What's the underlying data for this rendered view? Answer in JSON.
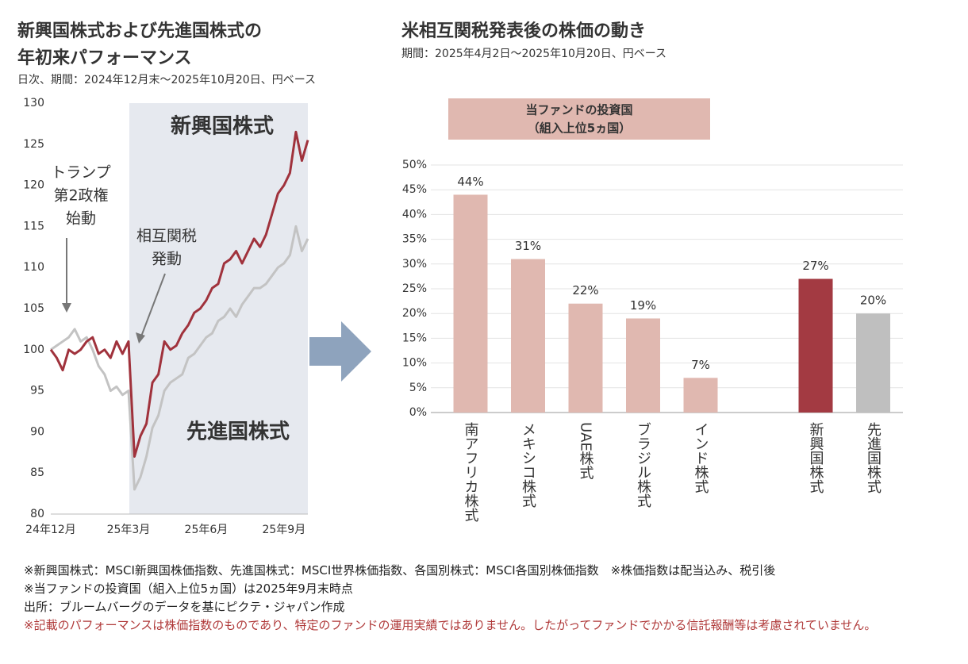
{
  "chart_data": [
    {
      "type": "line",
      "title": [
        "新興国株式および先進国株式の",
        "年初来パフォーマンス"
      ],
      "subtitle": "日次、期間：2024年12月末～2025年10月20日、円ベース",
      "categories": [
        "24年12月",
        null,
        null,
        null,
        null,
        null,
        null,
        null,
        null,
        null,
        null,
        null,
        null,
        "25年3月",
        null,
        null,
        null,
        null,
        null,
        null,
        null,
        null,
        null,
        null,
        null,
        null,
        "25年6月",
        null,
        null,
        null,
        null,
        null,
        null,
        null,
        null,
        null,
        null,
        null,
        null,
        "25年9月",
        null,
        null,
        null,
        null
      ],
      "series": [
        {
          "name": "新興国株式",
          "color": "#a0323c",
          "values": [
            100,
            99,
            97.5,
            100,
            99.5,
            100,
            101,
            101.5,
            99.5,
            100,
            99,
            101,
            99.5,
            101,
            87,
            89.5,
            91,
            96,
            97,
            101,
            100,
            100.5,
            102,
            103,
            104.5,
            105,
            106,
            107.5,
            108,
            110.5,
            111,
            112,
            110.5,
            112,
            113.5,
            112.5,
            114,
            116.5,
            119,
            120,
            121.5,
            126.5,
            123,
            125.5
          ]
        },
        {
          "name": "先進国株式",
          "color": "#c3c3c3",
          "values": [
            100,
            100.5,
            101,
            101.5,
            102.5,
            101,
            101.5,
            100,
            98,
            97,
            95,
            95.5,
            94.5,
            95,
            83,
            84.5,
            87,
            90.5,
            92,
            95,
            96,
            96.5,
            97,
            99,
            99.5,
            100.5,
            101.5,
            102,
            103.5,
            104,
            105,
            104,
            105.5,
            106.5,
            107.5,
            107.5,
            108,
            109,
            110,
            110.5,
            111.5,
            115,
            112,
            113.5
          ]
        }
      ],
      "ylim": [
        80,
        130
      ],
      "yticks": [
        80,
        85,
        90,
        95,
        100,
        105,
        110,
        115,
        120,
        125,
        130
      ],
      "grid": false,
      "annotations": [
        [
          "トランプ",
          "第2政権",
          "始動"
        ],
        [
          "相互関税",
          "発動"
        ]
      ]
    },
    {
      "type": "bar",
      "title": "米相互関税発表後の株価の動き",
      "subtitle": "期間：2025年4月2日～2025年10月20日、円ベース",
      "box": [
        "当ファンドの投資国",
        "（組入上位5ヵ国）"
      ],
      "categories": [
        "南アフリカ株式",
        "メキシコ株式",
        "UAE株式",
        "ブラジル株式",
        "インド株式",
        "新興国株式",
        "先進国株式"
      ],
      "values": [
        44,
        31,
        22,
        19,
        7,
        27,
        20
      ],
      "value_labels": [
        "44%",
        "31%",
        "22%",
        "19%",
        "7%",
        "27%",
        "20%"
      ],
      "colors": [
        "#e0b8b0",
        "#e0b8b0",
        "#e0b8b0",
        "#e0b8b0",
        "#e0b8b0",
        "#a33a42",
        "#bfbfbf"
      ],
      "ylim": [
        0,
        50
      ],
      "yticks": [
        {
          "value": 0,
          "label": "0%"
        },
        {
          "value": 5,
          "label": "5%"
        },
        {
          "value": 10,
          "label": "10%"
        },
        {
          "value": 15,
          "label": "15%"
        },
        {
          "value": 20,
          "label": "20%"
        },
        {
          "value": 25,
          "label": "25%"
        },
        {
          "value": 30,
          "label": "30%"
        },
        {
          "value": 35,
          "label": "35%"
        },
        {
          "value": 40,
          "label": "40%"
        },
        {
          "value": 45,
          "label": "45%"
        },
        {
          "value": 50,
          "label": "50%"
        }
      ],
      "grid": true
    }
  ],
  "notes": [
    "※新興国株式：MSCI新興国株価指数、先進国株式：MSCI世界株価指数、各国別株式：MSCI各国別株価指数　※株価指数は配当込み、税引後",
    "※当ファンドの投資国（組入上位5ヵ国）は2025年9月末時点",
    "出所：ブルームバーグのデータを基にピクテ・ジャパン作成",
    "※記載のパフォーマンスは株価指数のものであり、特定のファンドの運用実績ではありません。したがってファンドでかかる信託報酬等は考慮されていません。"
  ]
}
